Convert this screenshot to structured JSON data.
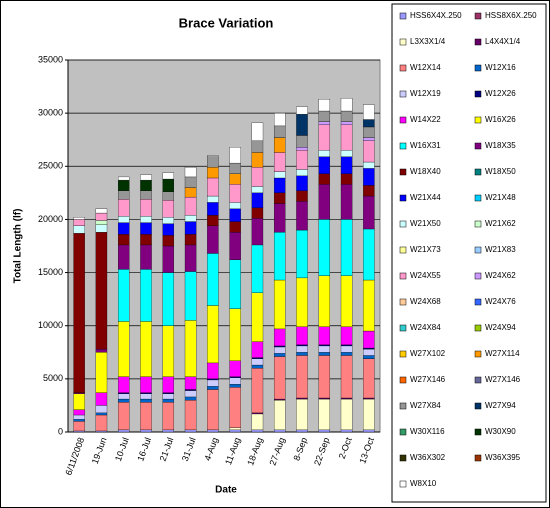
{
  "chart_data": {
    "type": "stacked_bar",
    "title": "Brace Variation",
    "x_label": "Date",
    "y_label": "Total Length (lf)",
    "categories": [
      "6/11/2008",
      "19-Jun",
      "10-Jul",
      "16-Jul",
      "21-Jul",
      "31-Jul",
      "4-Aug",
      "11-Aug",
      "18-Aug",
      "27-Aug",
      "8-Sep",
      "22-Sep",
      "2-Oct",
      "13-Oct"
    ],
    "ylim": [
      0,
      35000
    ],
    "yticks": [
      0,
      5000,
      10000,
      15000,
      20000,
      25000,
      30000,
      35000
    ],
    "grid": true,
    "legend": "right",
    "series": [
      {
        "name": "HSS6X4X.250",
        "color": "#9999ff",
        "values": [
          100,
          100,
          200,
          200,
          200,
          200,
          200,
          200,
          200,
          200,
          200,
          200,
          200,
          200
        ]
      },
      {
        "name": "HSS8X6X.250",
        "color": "#993366",
        "values": [
          0,
          0,
          0,
          0,
          0,
          0,
          0,
          0,
          0,
          0,
          0,
          0,
          0,
          0
        ]
      },
      {
        "name": "L3X3X1/4",
        "color": "#ffffcc",
        "values": [
          0,
          0,
          0,
          0,
          0,
          0,
          0,
          200,
          1500,
          2800,
          2900,
          2900,
          2900,
          2900
        ]
      },
      {
        "name": "L4X4X1/4",
        "color": "#660066",
        "values": [
          0,
          0,
          0,
          0,
          0,
          0,
          0,
          0,
          100,
          100,
          100,
          100,
          100,
          100
        ]
      },
      {
        "name": "W12X14",
        "color": "#ff8080",
        "values": [
          900,
          1500,
          2600,
          2600,
          2600,
          2800,
          3800,
          3800,
          4200,
          4000,
          4000,
          4000,
          4000,
          3700
        ]
      },
      {
        "name": "W12X16",
        "color": "#0066cc",
        "values": [
          200,
          200,
          300,
          300,
          300,
          300,
          300,
          300,
          300,
          300,
          300,
          300,
          300,
          300
        ]
      },
      {
        "name": "W12X19",
        "color": "#ccccff",
        "values": [
          400,
          700,
          500,
          500,
          500,
          600,
          600,
          600,
          600,
          600,
          600,
          600,
          600,
          600
        ]
      },
      {
        "name": "W12X26",
        "color": "#000080",
        "values": [
          0,
          0,
          100,
          100,
          100,
          100,
          100,
          100,
          100,
          100,
          100,
          100,
          100,
          100
        ]
      },
      {
        "name": "W14X22",
        "color": "#ff00ff",
        "values": [
          500,
          1200,
          1500,
          1500,
          1500,
          1200,
          1500,
          1500,
          1500,
          1600,
          1700,
          1700,
          1700,
          1600
        ]
      },
      {
        "name": "W16X26",
        "color": "#ffff00",
        "values": [
          1500,
          3800,
          5200,
          5200,
          4800,
          5300,
          5400,
          4900,
          4600,
          4600,
          4600,
          4800,
          4800,
          4800
        ]
      },
      {
        "name": "W16X31",
        "color": "#00ffff",
        "values": [
          0,
          0,
          4900,
          4900,
          5000,
          4600,
          4900,
          4600,
          4500,
          4500,
          4500,
          5300,
          5300,
          4800
        ]
      },
      {
        "name": "W18X35",
        "color": "#800080",
        "values": [
          100,
          300,
          2300,
          2300,
          2500,
          2500,
          2600,
          2600,
          2500,
          2700,
          2700,
          3300,
          3300,
          3100
        ]
      },
      {
        "name": "W18X40",
        "color": "#800000",
        "values": [
          15000,
          11000,
          1000,
          1000,
          1000,
          1000,
          1000,
          1000,
          1000,
          1000,
          1000,
          1000,
          1000,
          1000
        ]
      },
      {
        "name": "W18X50",
        "color": "#008080",
        "values": [
          0,
          0,
          0,
          0,
          0,
          0,
          0,
          0,
          0,
          0,
          0,
          0,
          0,
          0
        ]
      },
      {
        "name": "W21X44",
        "color": "#0000ff",
        "values": [
          0,
          0,
          1100,
          1100,
          1100,
          1200,
          1200,
          1200,
          1400,
          1400,
          1400,
          1600,
          1600,
          1600
        ]
      },
      {
        "name": "W21X48",
        "color": "#00ccff",
        "values": [
          0,
          0,
          0,
          0,
          0,
          0,
          0,
          0,
          0,
          0,
          0,
          0,
          0,
          0
        ]
      },
      {
        "name": "W21X50",
        "color": "#ccffff",
        "values": [
          700,
          700,
          600,
          600,
          600,
          600,
          600,
          600,
          600,
          600,
          600,
          600,
          600,
          600
        ]
      },
      {
        "name": "W21X62",
        "color": "#ccffcc",
        "values": [
          0,
          400,
          0,
          0,
          0,
          0,
          0,
          0,
          0,
          0,
          0,
          0,
          0,
          0
        ]
      },
      {
        "name": "W21X73",
        "color": "#ffff99",
        "values": [
          0,
          0,
          0,
          0,
          0,
          0,
          0,
          0,
          0,
          0,
          0,
          0,
          0,
          0
        ]
      },
      {
        "name": "W21X83",
        "color": "#99ccff",
        "values": [
          0,
          0,
          0,
          0,
          0,
          0,
          0,
          0,
          0,
          0,
          0,
          0,
          0,
          0
        ]
      },
      {
        "name": "W24X55",
        "color": "#ff99cc",
        "values": [
          600,
          700,
          1600,
          1600,
          1600,
          1700,
          1700,
          1700,
          1800,
          1800,
          1800,
          2400,
          2400,
          2000
        ]
      },
      {
        "name": "W24X62",
        "color": "#cc99ff",
        "values": [
          0,
          0,
          0,
          0,
          0,
          0,
          0,
          0,
          0,
          0,
          300,
          300,
          300,
          300
        ]
      },
      {
        "name": "W24X68",
        "color": "#ffcc99",
        "values": [
          0,
          0,
          0,
          0,
          0,
          0,
          0,
          0,
          0,
          0,
          0,
          0,
          0,
          0
        ]
      },
      {
        "name": "W24X76",
        "color": "#3366ff",
        "values": [
          0,
          0,
          0,
          0,
          0,
          0,
          0,
          0,
          0,
          0,
          0,
          0,
          0,
          0
        ]
      },
      {
        "name": "W24X84",
        "color": "#33cccc",
        "values": [
          0,
          0,
          0,
          0,
          0,
          0,
          0,
          0,
          0,
          0,
          0,
          0,
          0,
          0
        ]
      },
      {
        "name": "W24X94",
        "color": "#99cc00",
        "values": [
          0,
          0,
          0,
          0,
          0,
          0,
          0,
          0,
          0,
          0,
          0,
          0,
          0,
          0
        ]
      },
      {
        "name": "W27X102",
        "color": "#ffcc00",
        "values": [
          0,
          0,
          0,
          0,
          0,
          0,
          0,
          0,
          0,
          0,
          0,
          0,
          0,
          0
        ]
      },
      {
        "name": "W27X114",
        "color": "#ff9900",
        "values": [
          0,
          0,
          0,
          0,
          0,
          900,
          1000,
          1000,
          1400,
          1400,
          0,
          0,
          0,
          0
        ]
      },
      {
        "name": "W27X146",
        "color": "#ff6600",
        "values": [
          0,
          0,
          0,
          0,
          0,
          0,
          0,
          0,
          0,
          0,
          0,
          0,
          0,
          0
        ]
      },
      {
        "name": "W27X146",
        "color": "#666699",
        "values": [
          0,
          0,
          0,
          0,
          0,
          0,
          0,
          0,
          0,
          0,
          0,
          0,
          0,
          0
        ]
      },
      {
        "name": "W27X84",
        "color": "#969696",
        "values": [
          0,
          0,
          800,
          800,
          800,
          1000,
          1000,
          1000,
          1100,
          1100,
          1100,
          1000,
          1000,
          1000
        ]
      },
      {
        "name": "W27X94",
        "color": "#003366",
        "values": [
          0,
          0,
          0,
          0,
          0,
          0,
          0,
          0,
          0,
          0,
          2000,
          0,
          0,
          700
        ]
      },
      {
        "name": "W30X116",
        "color": "#339966",
        "values": [
          0,
          0,
          0,
          0,
          0,
          0,
          0,
          0,
          0,
          0,
          0,
          0,
          0,
          0
        ]
      },
      {
        "name": "W30X90",
        "color": "#003300",
        "values": [
          0,
          0,
          1000,
          1000,
          1200,
          0,
          0,
          0,
          0,
          0,
          0,
          0,
          0,
          0
        ]
      },
      {
        "name": "W36X302",
        "color": "#333300",
        "values": [
          0,
          0,
          0,
          0,
          0,
          0,
          0,
          0,
          0,
          0,
          0,
          0,
          0,
          0
        ]
      },
      {
        "name": "W36X395",
        "color": "#993300",
        "values": [
          0,
          0,
          0,
          0,
          0,
          0,
          0,
          0,
          0,
          0,
          0,
          0,
          0,
          0
        ]
      },
      {
        "name": "W8X10",
        "color": "#ffffff",
        "values": [
          200,
          400,
          300,
          500,
          600,
          900,
          100,
          1500,
          1700,
          1200,
          700,
          1100,
          1200,
          1400
        ]
      }
    ]
  }
}
